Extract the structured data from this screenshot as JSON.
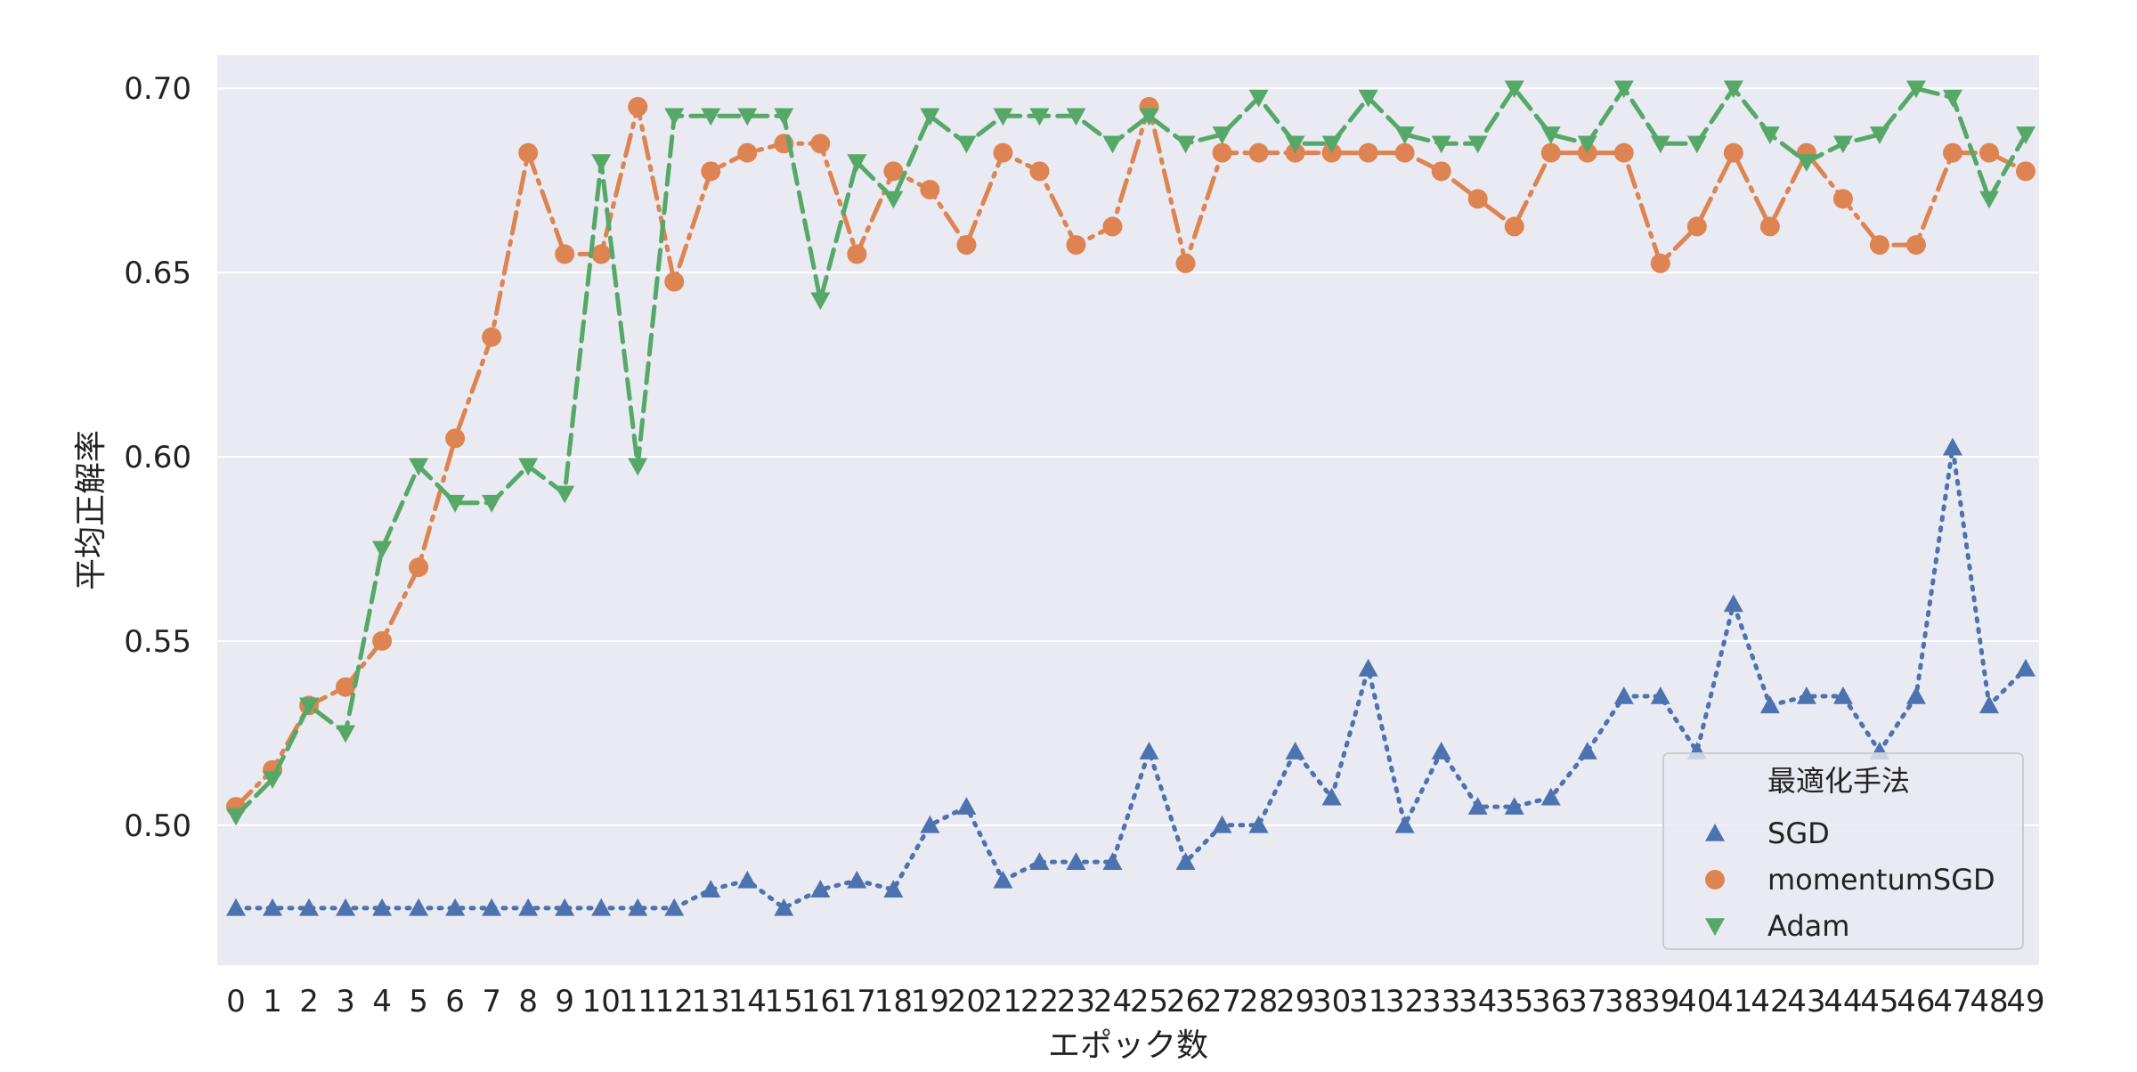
{
  "chart_data": {
    "type": "line",
    "xlabel": "エポック数",
    "ylabel": "平均正解率",
    "x": [
      0,
      1,
      2,
      3,
      4,
      5,
      6,
      7,
      8,
      9,
      10,
      11,
      12,
      13,
      14,
      15,
      16,
      17,
      18,
      19,
      20,
      21,
      22,
      23,
      24,
      25,
      26,
      27,
      28,
      29,
      30,
      31,
      32,
      33,
      34,
      35,
      36,
      37,
      38,
      39,
      40,
      41,
      42,
      43,
      44,
      45,
      46,
      47,
      48,
      49
    ],
    "ylim": [
      0.462,
      0.709
    ],
    "yticks": [
      "0.50",
      "0.55",
      "0.60",
      "0.65",
      "0.70"
    ],
    "grid": true,
    "legend": {
      "title": "最適化手法",
      "position": "bottom-right"
    },
    "series": [
      {
        "name": "SGD",
        "marker": "triangle-up",
        "linestyle": "dotted",
        "color": "#4c72b0",
        "values": [
          0.4775,
          0.4775,
          0.4775,
          0.4775,
          0.4775,
          0.4775,
          0.4775,
          0.4775,
          0.4775,
          0.4775,
          0.4775,
          0.4775,
          0.4775,
          0.4825,
          0.485,
          0.4775,
          0.4825,
          0.485,
          0.4825,
          0.5,
          0.505,
          0.485,
          0.49,
          0.49,
          0.49,
          0.52,
          0.49,
          0.5,
          0.5,
          0.52,
          0.5075,
          0.5425,
          0.5,
          0.52,
          0.505,
          0.505,
          0.5075,
          0.52,
          0.535,
          0.535,
          0.52,
          0.56,
          0.5325,
          0.535,
          0.535,
          0.52,
          0.535,
          0.6025,
          0.5325,
          0.5425
        ]
      },
      {
        "name": "momentumSGD",
        "marker": "circle",
        "linestyle": "dashdot",
        "color": "#dd8452",
        "values": [
          0.505,
          0.515,
          0.5325,
          0.5375,
          0.55,
          0.57,
          0.605,
          0.6325,
          0.6825,
          0.655,
          0.655,
          0.695,
          0.6475,
          0.6775,
          0.6825,
          0.685,
          0.685,
          0.655,
          0.6775,
          0.6725,
          0.6575,
          0.6825,
          0.6775,
          0.6575,
          0.6625,
          0.695,
          0.6525,
          0.6825,
          0.6825,
          0.6825,
          0.6825,
          0.6825,
          0.6825,
          0.6775,
          0.67,
          0.6625,
          0.6825,
          0.6825,
          0.6825,
          0.6525,
          0.6625,
          0.6825,
          0.6625,
          0.6825,
          0.67,
          0.6575,
          0.6575,
          0.6825,
          0.6825,
          0.6775
        ]
      },
      {
        "name": "Adam",
        "marker": "triangle-down",
        "linestyle": "dashed",
        "color": "#55a868",
        "values": [
          0.5025,
          0.5125,
          0.5325,
          0.525,
          0.575,
          0.5975,
          0.5875,
          0.5875,
          0.5975,
          0.59,
          0.68,
          0.5975,
          0.6925,
          0.6925,
          0.6925,
          0.6925,
          0.6425,
          0.68,
          0.67,
          0.6925,
          0.685,
          0.6925,
          0.6925,
          0.6925,
          0.685,
          0.6925,
          0.685,
          0.6875,
          0.6975,
          0.685,
          0.685,
          0.6975,
          0.6875,
          0.685,
          0.685,
          0.7,
          0.6875,
          0.685,
          0.7,
          0.685,
          0.685,
          0.7,
          0.6875,
          0.68,
          0.685,
          0.6875,
          0.7,
          0.6975,
          0.67,
          0.6875
        ]
      }
    ]
  }
}
